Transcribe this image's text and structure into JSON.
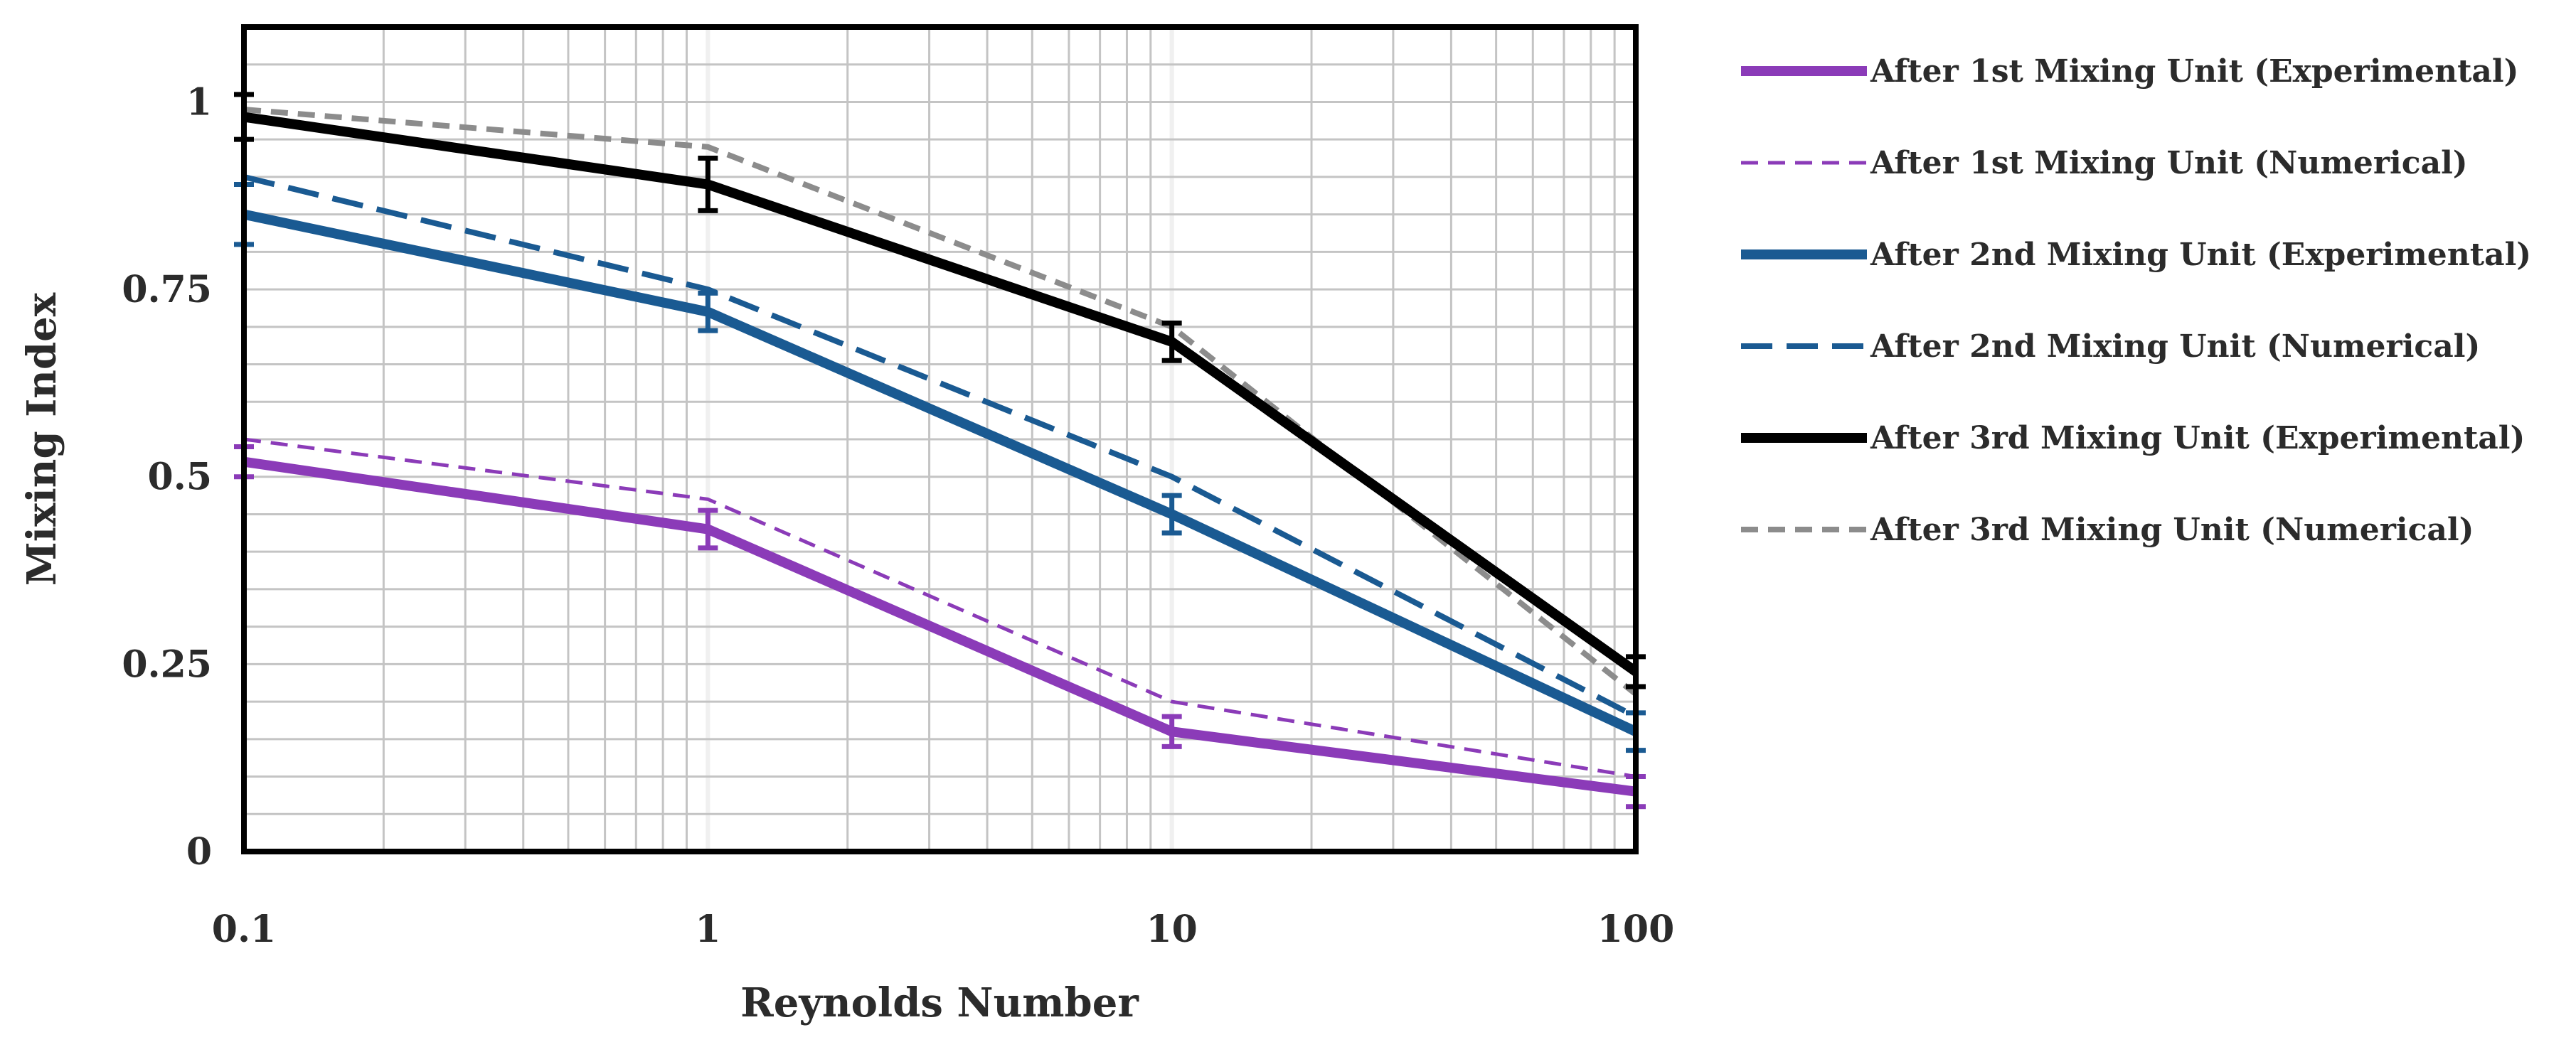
{
  "chart_data": {
    "type": "line",
    "xlabel": "Reynolds Number",
    "ylabel": "Mixing Index",
    "xscale": "log",
    "xlim": [
      0.1,
      100
    ],
    "ylim": [
      0,
      1.1
    ],
    "x_ticks": [
      "0.1",
      "1",
      "10",
      "100"
    ],
    "y_ticks": [
      "0",
      "0.25",
      "0.5",
      "0.75",
      "1"
    ],
    "x": [
      0.1,
      1,
      10,
      100
    ],
    "grid": true,
    "legend_position": "right",
    "series": [
      {
        "name": "After 1st Mixing Unit (Experimental)",
        "values": [
          0.52,
          0.43,
          0.16,
          0.08
        ],
        "error": [
          0.02,
          0.025,
          0.02,
          0.02
        ],
        "color": "#8b3bb8",
        "dash": "solid",
        "weight": "thick"
      },
      {
        "name": "After 1st Mixing Unit (Numerical)",
        "values": [
          0.55,
          0.47,
          0.2,
          0.1
        ],
        "color": "#8b3bb8",
        "dash": "short",
        "weight": "thin"
      },
      {
        "name": "After 2nd Mixing Unit (Experimental)",
        "values": [
          0.85,
          0.72,
          0.45,
          0.16
        ],
        "error": [
          0.04,
          0.025,
          0.025,
          0.025
        ],
        "color": "#1a5a92",
        "dash": "solid",
        "weight": "thick"
      },
      {
        "name": "After 2nd Mixing Unit (Numerical)",
        "values": [
          0.9,
          0.75,
          0.5,
          0.18
        ],
        "color": "#1a5a92",
        "dash": "long",
        "weight": "medium"
      },
      {
        "name": "After 3rd Mixing Unit (Experimental)",
        "values": [
          0.98,
          0.89,
          0.68,
          0.24
        ],
        "error": [
          0.03,
          0.035,
          0.025,
          0.02
        ],
        "color": "#000000",
        "dash": "solid",
        "weight": "thick"
      },
      {
        "name": "After 3rd Mixing Unit (Numerical)",
        "values": [
          0.99,
          0.94,
          0.7,
          0.21
        ],
        "color": "#8c8c8c",
        "dash": "short",
        "weight": "medium"
      }
    ]
  }
}
